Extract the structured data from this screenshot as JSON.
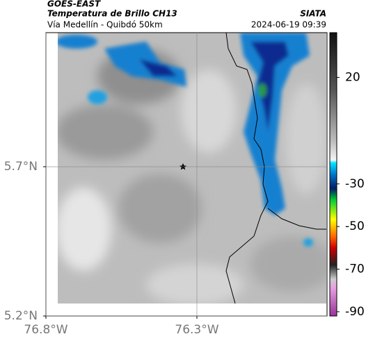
{
  "header": {
    "source": "GOES-EAST",
    "product": "Temperatura de Brillo CH13",
    "org": "SIATA",
    "region": "Vía Medellín - Quibdó 50km",
    "datetime": "2024-06-19 09:39"
  },
  "map": {
    "xlim": [
      -76.8,
      -75.869
    ],
    "ylim": [
      5.2,
      6.149
    ],
    "xticks": [
      {
        "value": -76.8,
        "label": "76.8°W"
      },
      {
        "value": -76.3,
        "label": "76.3°W"
      }
    ],
    "yticks": [
      {
        "value": 5.2,
        "label": "5.2°N"
      },
      {
        "value": 5.7,
        "label": "5.7°N"
      }
    ]
  },
  "colorbar": {
    "lim": [
      -92,
      41
    ],
    "ticks": [
      20,
      -30,
      -50,
      -70,
      -90
    ]
  }
}
